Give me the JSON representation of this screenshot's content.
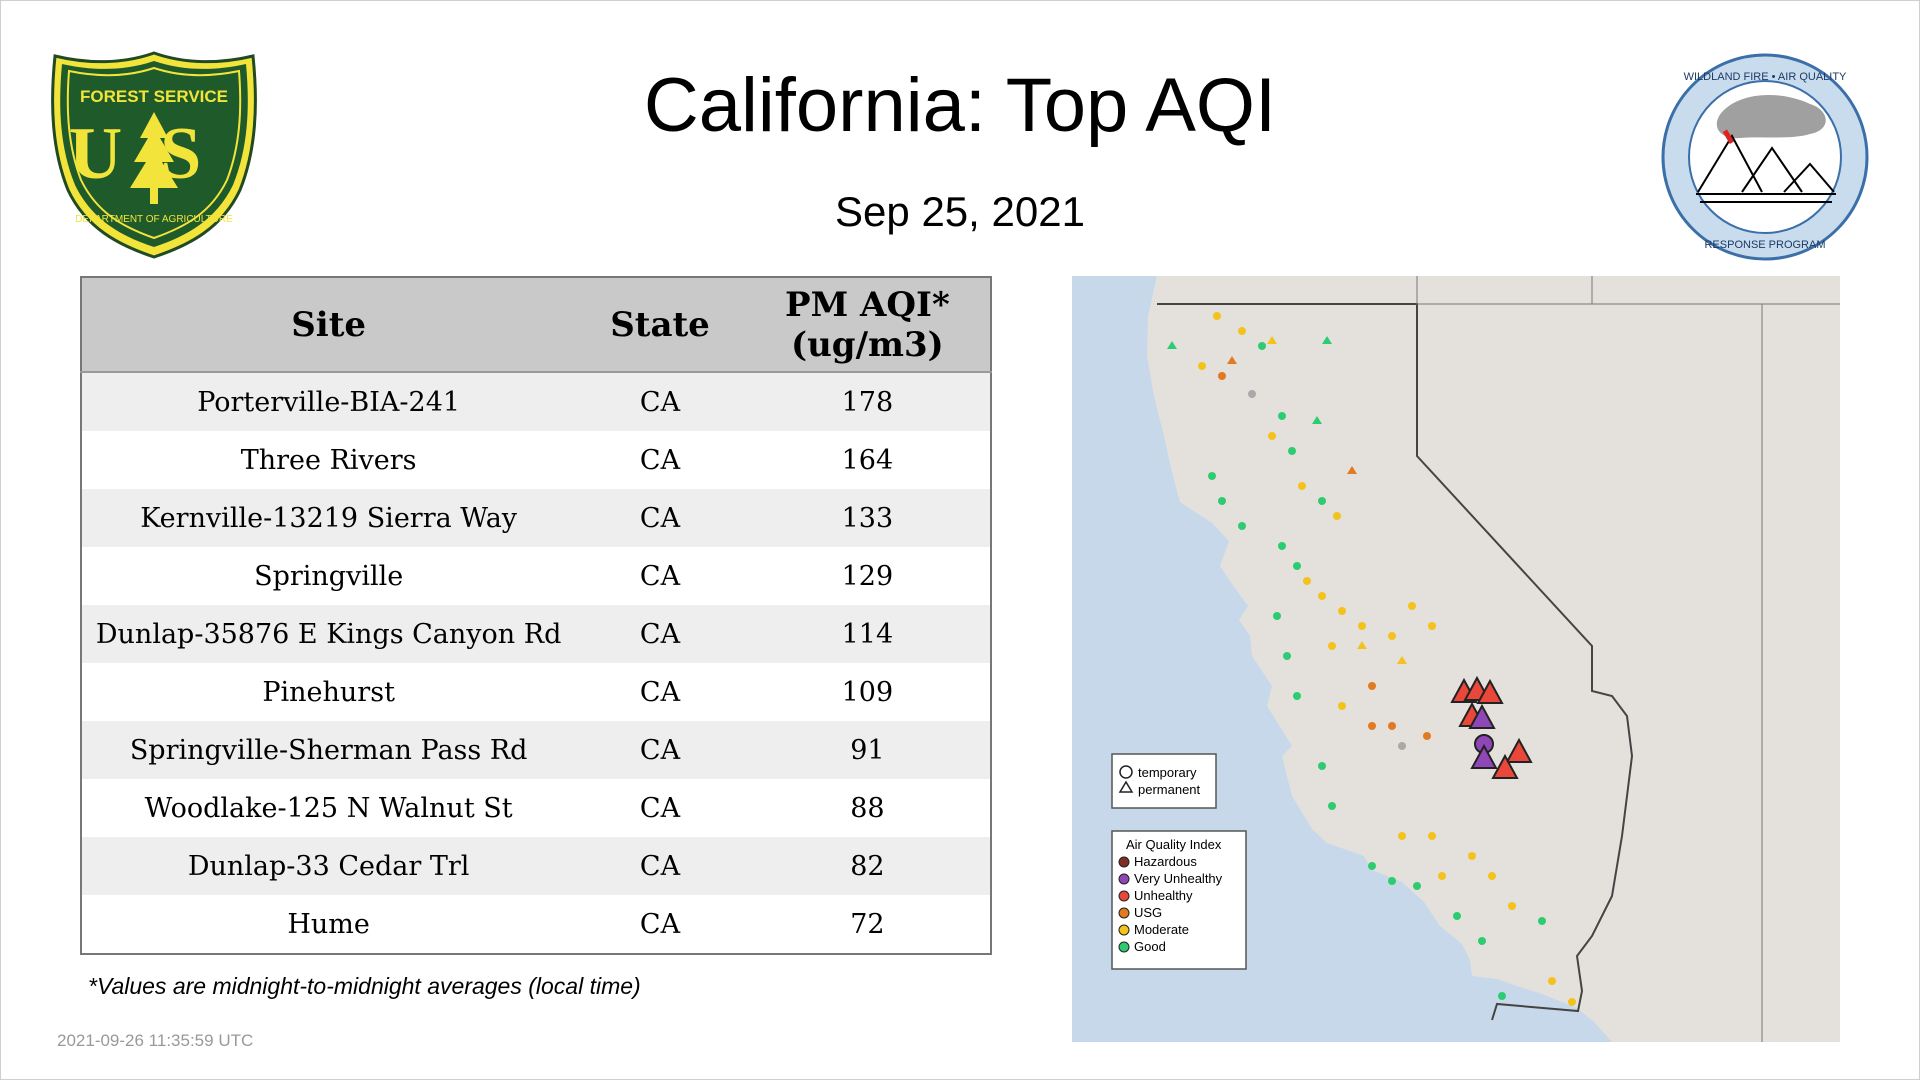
{
  "header": {
    "title": "California: Top AQI",
    "date": "Sep 25, 2021"
  },
  "logos": {
    "forest_service": {
      "top_text": "FOREST SERVICE",
      "letters": "US",
      "bottom_text": "DEPARTMENT OF AGRICULTURE"
    },
    "wildland": {
      "top_text": "WILDLAND FIRE • AIR QUALITY",
      "bottom_text": "RESPONSE PROGRAM"
    }
  },
  "table": {
    "headers": {
      "site": "Site",
      "state": "State",
      "aqi_line1": "PM AQI*",
      "aqi_line2": "(ug/m3)"
    },
    "rows": [
      {
        "site": "Porterville-BIA-241",
        "state": "CA",
        "aqi": "178"
      },
      {
        "site": "Three Rivers",
        "state": "CA",
        "aqi": "164"
      },
      {
        "site": "Kernville-13219 Sierra Way",
        "state": "CA",
        "aqi": "133"
      },
      {
        "site": "Springville",
        "state": "CA",
        "aqi": "129"
      },
      {
        "site": "Dunlap-35876 E Kings Canyon Rd",
        "state": "CA",
        "aqi": "114"
      },
      {
        "site": "Pinehurst",
        "state": "CA",
        "aqi": "109"
      },
      {
        "site": "Springville-Sherman Pass Rd",
        "state": "CA",
        "aqi": "91"
      },
      {
        "site": "Woodlake-125 N Walnut St",
        "state": "CA",
        "aqi": "88"
      },
      {
        "site": "Dunlap-33 Cedar Trl",
        "state": "CA",
        "aqi": "82"
      },
      {
        "site": "Hume",
        "state": "CA",
        "aqi": "72"
      }
    ]
  },
  "footnote": "*Values are midnight-to-midnight averages (local time)",
  "timestamp": "2021-09-26 11:35:59 UTC",
  "map": {
    "legend_shape": {
      "temporary": "temporary",
      "permanent": "permanent"
    },
    "legend_aqi": {
      "title": "Air Quality Index",
      "items": [
        {
          "label": "Hazardous",
          "color": "#7e2e20"
        },
        {
          "label": "Very Unhealthy",
          "color": "#8f47b8"
        },
        {
          "label": "Unhealthy",
          "color": "#e8473a"
        },
        {
          "label": "USG",
          "color": "#e27a22"
        },
        {
          "label": "Moderate",
          "color": "#f3c21c"
        },
        {
          "label": "Good",
          "color": "#2ecc71"
        }
      ]
    }
  }
}
